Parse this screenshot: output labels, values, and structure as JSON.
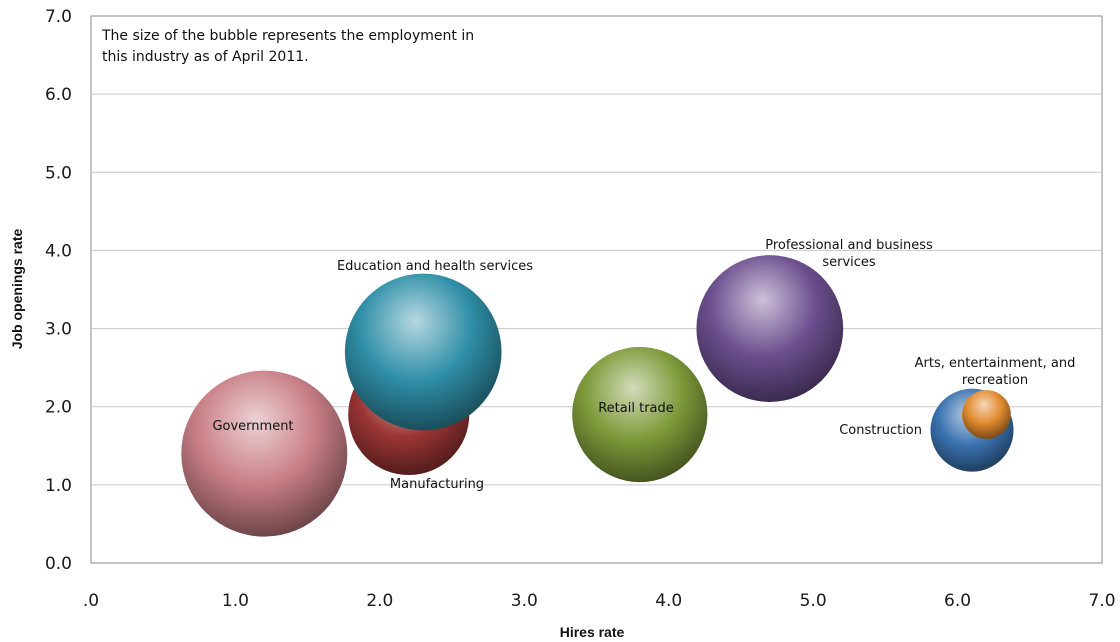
{
  "chart_data": {
    "type": "scatter",
    "title": "",
    "note": [
      "The size of the bubble represents the employment in",
      "this industry as of April 2011."
    ],
    "xlabel": "Hires rate",
    "ylabel": "Job openings rate",
    "xlim": [
      0,
      7
    ],
    "ylim": [
      0,
      7
    ],
    "x_ticks": [
      ".0",
      "1.0",
      "2.0",
      "3.0",
      "4.0",
      "5.0",
      "6.0",
      "7.0"
    ],
    "y_ticks": [
      "0.0",
      "1.0",
      "2.0",
      "3.0",
      "4.0",
      "5.0",
      "6.0",
      "7.0"
    ],
    "grid": "horizontal",
    "legend": "none",
    "points": [
      {
        "name": "Government",
        "x": 1.2,
        "y": 1.4,
        "size": 22.0,
        "color": "#c97f86",
        "label_lines": [
          "Government"
        ]
      },
      {
        "name": "Manufacturing",
        "x": 2.2,
        "y": 1.9,
        "size": 11.7,
        "color": "#9b3535",
        "label_lines": [
          "Manufacturing"
        ]
      },
      {
        "name": "Education and health services",
        "x": 2.3,
        "y": 2.7,
        "size": 19.6,
        "color": "#2f8fa8",
        "label_lines": [
          "Education and health services"
        ]
      },
      {
        "name": "Retail trade",
        "x": 3.8,
        "y": 1.9,
        "size": 14.6,
        "color": "#7f9a3a",
        "label_lines": [
          "Retail trade"
        ]
      },
      {
        "name": "Professional and business services",
        "x": 4.7,
        "y": 3.0,
        "size": 17.2,
        "color": "#6c4f8f",
        "label_lines": [
          "Professional and business",
          "services"
        ]
      },
      {
        "name": "Construction",
        "x": 6.1,
        "y": 1.7,
        "size": 5.5,
        "color": "#3a72b0",
        "label_lines": [
          "Construction"
        ]
      },
      {
        "name": "Arts, entertainment, and recreation",
        "x": 6.2,
        "y": 1.9,
        "size": 1.9,
        "color": "#e08a2e",
        "label_lines": [
          "Arts, entertainment,  and",
          "recreation"
        ]
      }
    ]
  }
}
